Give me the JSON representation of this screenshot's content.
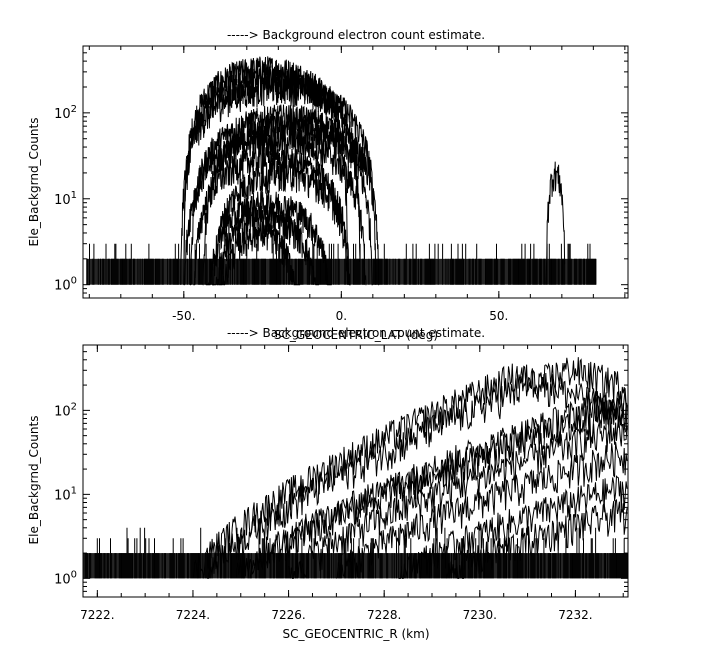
{
  "chart_data": [
    {
      "type": "line",
      "title": "-----> Background electron count estimate.",
      "xlabel": "SC_GEOCENTRIC_LAT (deg)",
      "ylabel": "Ele_Backgrnd_Counts",
      "x_scale": "linear",
      "y_scale": "log",
      "xlim": [
        -82,
        91
      ],
      "ylim": [
        0.7,
        600
      ],
      "x_ticks": [
        -50,
        0,
        50
      ],
      "x_tick_labels": [
        "-50.",
        "0.",
        "50."
      ],
      "y_ticks": [
        1,
        10,
        100
      ],
      "y_tick_labels": [
        "10^0",
        "10^1",
        "10^2"
      ],
      "y_tick_bases": [
        "10",
        "10",
        "10"
      ],
      "y_tick_exponents": [
        "0",
        "1",
        "2"
      ],
      "background_range": [
        -81,
        81
      ],
      "background_levels": [
        1,
        2,
        3
      ],
      "series": [
        {
          "type": "arc",
          "center": -24,
          "half_width": 26,
          "peak": 330
        },
        {
          "type": "arc",
          "center": -22,
          "half_width": 28,
          "peak": 260
        },
        {
          "type": "arc",
          "center": -20,
          "half_width": 31,
          "peak": 200
        },
        {
          "type": "arc",
          "center": -18,
          "half_width": 30,
          "peak": 90
        },
        {
          "type": "arc",
          "center": -17,
          "half_width": 27,
          "peak": 70
        },
        {
          "type": "arc",
          "center": -21,
          "half_width": 29,
          "peak": 50
        },
        {
          "type": "arc",
          "center": -22,
          "half_width": 25,
          "peak": 30
        },
        {
          "type": "arc",
          "center": -19,
          "half_width": 22,
          "peak": 20
        },
        {
          "type": "arc",
          "center": -23,
          "half_width": 20,
          "peak": 9
        },
        {
          "type": "arc",
          "center": -24,
          "half_width": 17,
          "peak": 6
        },
        {
          "type": "arc",
          "center": -26,
          "half_width": 13,
          "peak": 4
        },
        {
          "type": "spike",
          "center": 68,
          "half_width": 3,
          "peak": 20
        }
      ]
    },
    {
      "type": "line",
      "title": "-----> Background electron count estimate.",
      "xlabel": "SC_GEOCENTRIC_R (km)",
      "ylabel": "Ele_Backgrnd_Counts",
      "x_scale": "linear",
      "y_scale": "log",
      "xlim": [
        7221.7,
        7233.1
      ],
      "ylim": [
        0.6,
        600
      ],
      "x_ticks": [
        7222,
        7224,
        7226,
        7228,
        7230,
        7232
      ],
      "x_tick_labels": [
        "7222.",
        "7224.",
        "7226.",
        "7228.",
        "7230.",
        "7232."
      ],
      "y_ticks": [
        1,
        10,
        100
      ],
      "y_tick_labels": [
        "10^0",
        "10^1",
        "10^2"
      ],
      "y_tick_bases": [
        "10",
        "10",
        "10"
      ],
      "y_tick_exponents": [
        "0",
        "1",
        "2"
      ],
      "background_range": [
        7221.7,
        7233.1
      ],
      "background_levels": [
        1,
        2,
        3,
        4
      ],
      "series": [
        {
          "start": 7224.3,
          "peak_x": 7231.9,
          "peak": 320
        },
        {
          "start": 7224.0,
          "peak_x": 7230.8,
          "peak": 270
        },
        {
          "start": 7225.2,
          "peak_x": 7232.9,
          "peak": 140
        },
        {
          "start": 7224.9,
          "peak_x": 7232.9,
          "peak": 100
        },
        {
          "start": 7226.0,
          "peak_x": 7232.9,
          "peak": 60
        },
        {
          "start": 7227.0,
          "peak_x": 7232.9,
          "peak": 30
        },
        {
          "start": 7228.3,
          "peak_x": 7232.9,
          "peak": 12
        },
        {
          "start": 7229.3,
          "peak_x": 7232.9,
          "peak": 6
        }
      ]
    }
  ]
}
